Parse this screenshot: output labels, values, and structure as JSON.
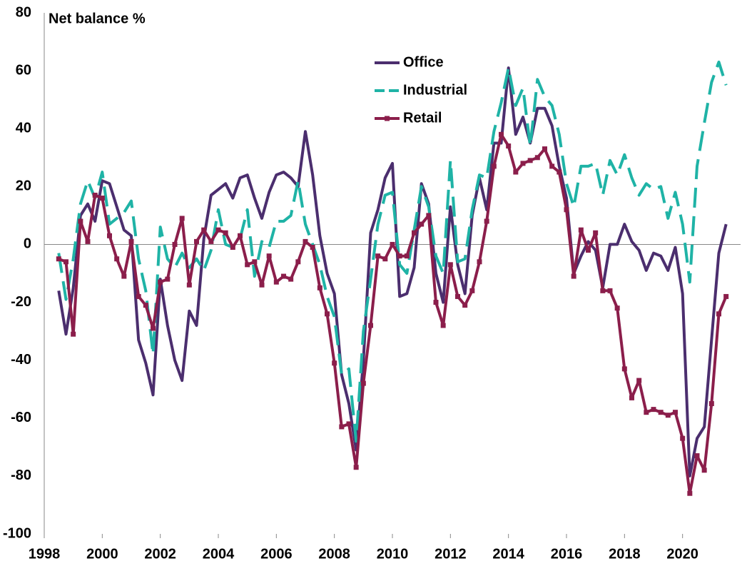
{
  "chart_data": {
    "type": "line",
    "ylabel": "Net balance %",
    "x": [
      1998.5,
      1998.75,
      1999,
      1999.25,
      1999.5,
      1999.75,
      2000,
      2000.25,
      2000.5,
      2000.75,
      2001,
      2001.25,
      2001.5,
      2001.75,
      2002,
      2002.25,
      2002.5,
      2002.75,
      2003,
      2003.25,
      2003.5,
      2003.75,
      2004,
      2004.25,
      2004.5,
      2004.75,
      2005,
      2005.25,
      2005.5,
      2005.75,
      2006,
      2006.25,
      2006.5,
      2006.75,
      2007,
      2007.25,
      2007.5,
      2007.75,
      2008,
      2008.25,
      2008.5,
      2008.75,
      2009,
      2009.25,
      2009.5,
      2009.75,
      2010,
      2010.25,
      2010.5,
      2010.75,
      2011,
      2011.25,
      2011.5,
      2011.75,
      2012,
      2012.25,
      2012.5,
      2012.75,
      2013,
      2013.25,
      2013.5,
      2013.75,
      2014,
      2014.25,
      2014.5,
      2014.75,
      2015,
      2015.25,
      2015.5,
      2015.75,
      2016,
      2016.25,
      2016.5,
      2016.75,
      2017,
      2017.25,
      2017.5,
      2017.75,
      2018,
      2018.25,
      2018.5,
      2018.75,
      2019,
      2019.25,
      2019.5,
      2019.75,
      2020,
      2020.25,
      2020.5,
      2020.75,
      2021,
      2021.25,
      2021.5
    ],
    "series": [
      {
        "name": "Office",
        "color": "#4b2e6e",
        "dash": false,
        "marker": null,
        "values": [
          -16,
          -31,
          -15,
          10,
          14,
          8,
          22,
          21,
          13,
          5,
          3,
          -33,
          -41,
          -52,
          -12,
          -28,
          -40,
          -47,
          -23,
          -28,
          2,
          17,
          19,
          21,
          16,
          23,
          24,
          16,
          9,
          18,
          24,
          25,
          23,
          20,
          39,
          24,
          3,
          -10,
          -17,
          -45,
          -55,
          -71,
          -40,
          4,
          12,
          23,
          28,
          -18,
          -17,
          -8,
          21,
          14,
          -10,
          -20,
          13,
          -7,
          -17,
          10,
          23,
          12,
          35,
          35,
          61,
          38,
          44,
          35,
          47,
          47,
          41,
          27,
          16,
          -10,
          -4,
          1,
          -2,
          -15,
          0,
          0,
          7,
          1,
          -2,
          -9,
          -3,
          -4,
          -9,
          -1,
          -17,
          -80,
          -67,
          -63,
          -33,
          -3,
          7
        ]
      },
      {
        "name": "Industrial",
        "color": "#1fb3a6",
        "dash": true,
        "marker": null,
        "values": [
          -3,
          -19,
          -5,
          14,
          22,
          16,
          25,
          7,
          9,
          11,
          15,
          -5,
          -16,
          -38,
          6,
          -5,
          -8,
          -3,
          -8,
          -5,
          -9,
          -2,
          12,
          0,
          -1,
          2,
          12,
          -11,
          1,
          -1,
          8,
          8,
          10,
          22,
          7,
          0,
          -7,
          -18,
          -25,
          -45,
          -43,
          -68,
          -30,
          -12,
          7,
          17,
          18,
          -7,
          -10,
          5,
          20,
          13,
          -4,
          -10,
          29,
          -6,
          -5,
          12,
          24,
          23,
          39,
          49,
          61,
          48,
          54,
          34,
          57,
          51,
          48,
          38,
          21,
          13,
          27,
          27,
          28,
          17,
          29,
          24,
          31,
          23,
          17,
          21,
          19,
          20,
          9,
          18,
          7,
          -13,
          27,
          42,
          56,
          63,
          55
        ]
      },
      {
        "name": "Retail",
        "color": "#8b1e4b",
        "dash": false,
        "marker": "square",
        "values": [
          -5,
          -6,
          -31,
          8,
          1,
          17,
          16,
          3,
          -5,
          -11,
          1,
          -18,
          -21,
          -29,
          -13,
          -12,
          0,
          9,
          -14,
          1,
          5,
          1,
          5,
          4,
          -1,
          3,
          -7,
          -6,
          -14,
          -4,
          -13,
          -11,
          -12,
          -6,
          1,
          -1,
          -15,
          -24,
          -41,
          -63,
          -62,
          -77,
          -48,
          -28,
          -4,
          -5,
          0,
          -4,
          -4,
          4,
          7,
          10,
          -20,
          -28,
          -7,
          -18,
          -21,
          -16,
          -6,
          8,
          27,
          38,
          34,
          25,
          28,
          29,
          30,
          33,
          27,
          25,
          12,
          -11,
          5,
          -2,
          4,
          -16,
          -16,
          -22,
          -43,
          -53,
          -47,
          -58,
          -57,
          -58,
          -59,
          -58,
          -67,
          -86,
          -73,
          -78,
          -55,
          -24,
          -18
        ]
      }
    ],
    "xlim": [
      1998,
      2022
    ],
    "xticks": [
      1998,
      2000,
      2002,
      2004,
      2006,
      2008,
      2010,
      2012,
      2014,
      2016,
      2018,
      2020
    ],
    "ylim": [
      -100,
      80
    ],
    "yticks": [
      -100,
      -80,
      -60,
      -40,
      -20,
      0,
      20,
      40,
      60,
      80
    ],
    "zero_line": true,
    "legend": "top-center"
  }
}
